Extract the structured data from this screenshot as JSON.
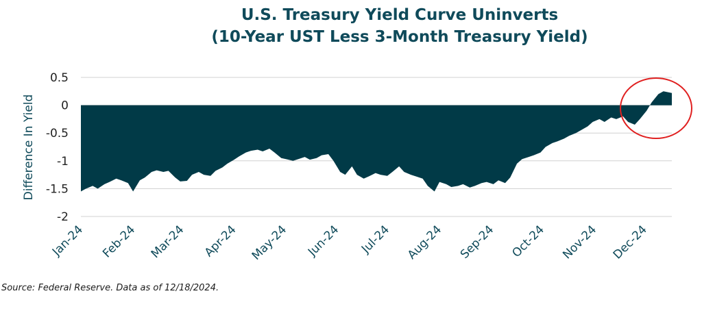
{
  "chart_data": {
    "type": "area",
    "title": "U.S. Treasury Yield Curve Uninverts",
    "subtitle": "(10-Year UST Less 3-Month Treasury Yield)",
    "xlabel": "",
    "ylabel": "Difference In Yield",
    "ylim": [
      -2,
      0.5
    ],
    "yticks": [
      0.5,
      0,
      -0.5,
      -1,
      -1.5,
      -2
    ],
    "ytick_labels": [
      "0.5",
      "0",
      "-0.5",
      "-1",
      "-1.5",
      "-2"
    ],
    "xtick_labels": [
      "Jan-24",
      "Feb-24",
      "Mar-24",
      "Apr-24",
      "May-24",
      "Jun-24",
      "Jul-24",
      "Aug-24",
      "Sep-24",
      "Oct-24",
      "Nov-24",
      "Dec-24"
    ],
    "grid": "horizontal",
    "fill_color": "#013a47",
    "annotation_color": "#e02020",
    "x": [
      "2024-01-02",
      "2024-01-05",
      "2024-01-09",
      "2024-01-12",
      "2024-01-16",
      "2024-01-19",
      "2024-01-23",
      "2024-01-26",
      "2024-01-30",
      "2024-02-02",
      "2024-02-06",
      "2024-02-09",
      "2024-02-13",
      "2024-02-16",
      "2024-02-20",
      "2024-02-23",
      "2024-02-27",
      "2024-03-01",
      "2024-03-05",
      "2024-03-08",
      "2024-03-12",
      "2024-03-15",
      "2024-03-19",
      "2024-03-22",
      "2024-03-26",
      "2024-03-29",
      "2024-04-02",
      "2024-04-05",
      "2024-04-09",
      "2024-04-12",
      "2024-04-16",
      "2024-04-19",
      "2024-04-23",
      "2024-04-26",
      "2024-04-30",
      "2024-05-03",
      "2024-05-07",
      "2024-05-10",
      "2024-05-14",
      "2024-05-17",
      "2024-05-21",
      "2024-05-24",
      "2024-05-28",
      "2024-05-31",
      "2024-06-04",
      "2024-06-07",
      "2024-06-11",
      "2024-06-14",
      "2024-06-18",
      "2024-06-21",
      "2024-06-25",
      "2024-06-28",
      "2024-07-02",
      "2024-07-05",
      "2024-07-09",
      "2024-07-12",
      "2024-07-16",
      "2024-07-19",
      "2024-07-23",
      "2024-07-26",
      "2024-07-30",
      "2024-08-02",
      "2024-08-06",
      "2024-08-09",
      "2024-08-13",
      "2024-08-16",
      "2024-08-20",
      "2024-08-23",
      "2024-08-27",
      "2024-08-30",
      "2024-09-03",
      "2024-09-06",
      "2024-09-10",
      "2024-09-13",
      "2024-09-17",
      "2024-09-20",
      "2024-09-24",
      "2024-09-27",
      "2024-10-01",
      "2024-10-04",
      "2024-10-08",
      "2024-10-11",
      "2024-10-15",
      "2024-10-18",
      "2024-10-22",
      "2024-10-25",
      "2024-10-29",
      "2024-11-01",
      "2024-11-05",
      "2024-11-08",
      "2024-11-12",
      "2024-11-15",
      "2024-11-19",
      "2024-11-22",
      "2024-11-26",
      "2024-11-29",
      "2024-12-03",
      "2024-12-06",
      "2024-12-10",
      "2024-12-13",
      "2024-12-18"
    ],
    "values": [
      -1.55,
      -1.5,
      -1.45,
      -1.5,
      -1.42,
      -1.38,
      -1.32,
      -1.35,
      -1.4,
      -1.55,
      -1.35,
      -1.3,
      -1.2,
      -1.17,
      -1.2,
      -1.18,
      -1.3,
      -1.37,
      -1.36,
      -1.25,
      -1.2,
      -1.25,
      -1.27,
      -1.18,
      -1.12,
      -1.05,
      -0.98,
      -0.92,
      -0.85,
      -0.82,
      -0.8,
      -0.83,
      -0.78,
      -0.85,
      -0.95,
      -0.97,
      -1.0,
      -0.97,
      -0.93,
      -0.98,
      -0.95,
      -0.9,
      -0.88,
      -1.0,
      -1.2,
      -1.25,
      -1.1,
      -1.25,
      -1.32,
      -1.28,
      -1.22,
      -1.25,
      -1.27,
      -1.2,
      -1.1,
      -1.2,
      -1.25,
      -1.28,
      -1.32,
      -1.45,
      -1.55,
      -1.38,
      -1.42,
      -1.47,
      -1.45,
      -1.42,
      -1.48,
      -1.45,
      -1.4,
      -1.38,
      -1.42,
      -1.35,
      -1.4,
      -1.3,
      -1.05,
      -0.97,
      -0.93,
      -0.9,
      -0.85,
      -0.75,
      -0.68,
      -0.65,
      -0.6,
      -0.55,
      -0.5,
      -0.45,
      -0.38,
      -0.3,
      -0.25,
      -0.3,
      -0.22,
      -0.25,
      -0.2,
      -0.3,
      -0.35,
      -0.25,
      -0.1,
      0.05,
      0.2,
      0.25,
      0.22
    ]
  },
  "source": "Source: Federal Reserve. Data as of 12/18/2024."
}
